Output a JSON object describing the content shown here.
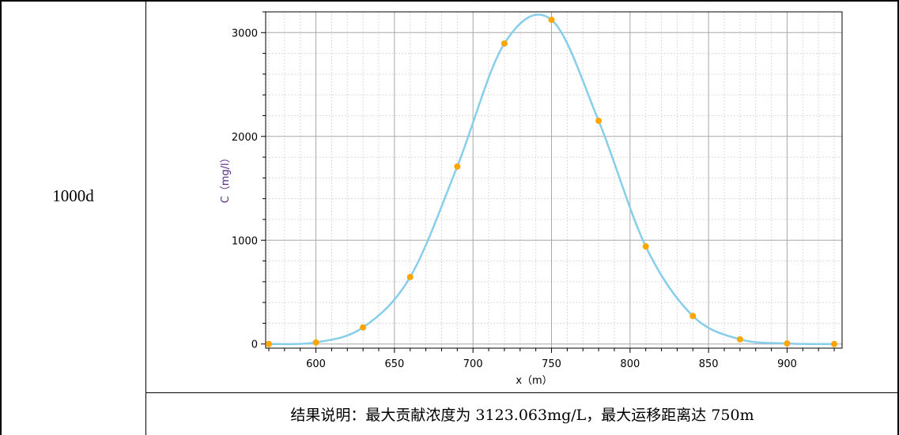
{
  "table": {
    "row_label": "1000d",
    "caption": "结果说明：最大贡献浓度为 3123.063mg/L，最大运移距离达 750m"
  },
  "colors": {
    "curve": "#87ceeb",
    "points": "#ffa500",
    "axis_label": "#5a2d82"
  },
  "chart_data": {
    "type": "line",
    "title": "",
    "xlabel": "x（m）",
    "ylabel": "C（mg/l）",
    "xlim": [
      568,
      935
    ],
    "ylim": [
      -40,
      3200
    ],
    "x_ticks": [
      600,
      650,
      700,
      750,
      800,
      850,
      900
    ],
    "y_ticks": [
      0,
      1000,
      2000,
      3000
    ],
    "grid": true,
    "series": [
      {
        "style": "markers",
        "x": [
          570,
          600,
          630,
          660,
          690,
          720,
          750,
          780,
          810,
          840,
          870,
          900,
          930
        ],
        "values": [
          0,
          15,
          160,
          645,
          1710,
          2895,
          3123,
          2150,
          940,
          270,
          45,
          5,
          0
        ]
      }
    ]
  }
}
